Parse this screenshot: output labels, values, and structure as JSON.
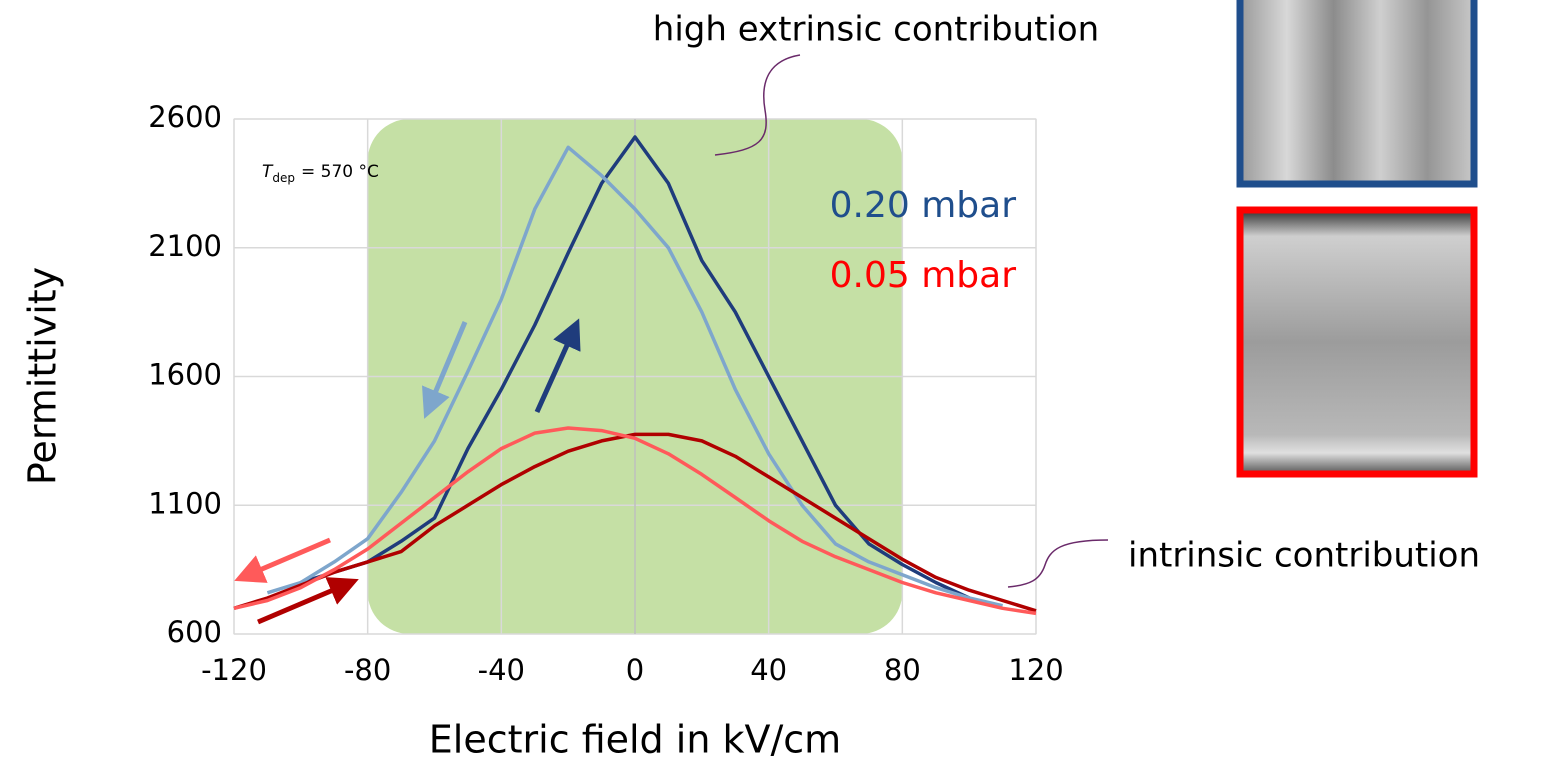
{
  "chart_data": {
    "type": "line",
    "xlabel": "Electric field in kV/cm",
    "ylabel": "Permittivity",
    "x": [
      -120,
      -110,
      -100,
      -90,
      -80,
      -70,
      -60,
      -50,
      -40,
      -30,
      -20,
      -10,
      0,
      10,
      20,
      30,
      40,
      50,
      60,
      70,
      80,
      90,
      100,
      110,
      120
    ],
    "xlim": [
      -120,
      120
    ],
    "xticks": [
      -120,
      -80,
      -40,
      0,
      40,
      80,
      120
    ],
    "ylim": [
      600,
      2600
    ],
    "yticks": [
      600,
      1100,
      1600,
      2100,
      2600
    ],
    "grid": true,
    "highlight": {
      "xlim": [
        -80,
        80
      ],
      "color": "#c5e0a5"
    },
    "series": [
      {
        "name": "0.20 mbar",
        "label_color": "#1f4e8c",
        "sweeps": [
          {
            "color": "#1f3c7c",
            "values": [
              null,
              null,
              800,
              840,
              880,
              960,
              1050,
              1320,
              1550,
              1800,
              2080,
              2350,
              2530,
              2350,
              2050,
              1850,
              1600,
              1350,
              1100,
              950,
              870,
              800,
              740,
              null,
              null
            ]
          },
          {
            "color": "#7ea6cc",
            "values": [
              null,
              760,
              800,
              880,
              970,
              1150,
              1350,
              1620,
              1900,
              2250,
              2490,
              2380,
              2250,
              2100,
              1850,
              1550,
              1300,
              1100,
              950,
              880,
              830,
              780,
              740,
              710,
              null
            ]
          }
        ]
      },
      {
        "name": "0.05 mbar",
        "label_color": "#ff0000",
        "sweeps": [
          {
            "color": "#b00000",
            "values": [
              700,
              740,
              790,
              840,
              880,
              920,
              1020,
              1100,
              1180,
              1250,
              1310,
              1350,
              1375,
              1375,
              1350,
              1290,
              1210,
              1130,
              1050,
              970,
              890,
              820,
              770,
              730,
              690
            ]
          },
          {
            "color": "#ff5a5a",
            "values": [
              700,
              730,
              780,
              850,
              930,
              1030,
              1130,
              1230,
              1320,
              1380,
              1400,
              1390,
              1360,
              1300,
              1220,
              1130,
              1040,
              960,
              900,
              850,
              800,
              760,
              730,
              700,
              680
            ]
          }
        ]
      }
    ],
    "annotations": [
      "high extrinsic contribution",
      "intrinsic contribution"
    ],
    "condition": {
      "symbol": "T",
      "subscript": "dep",
      "text": "= 570 °C"
    }
  }
}
